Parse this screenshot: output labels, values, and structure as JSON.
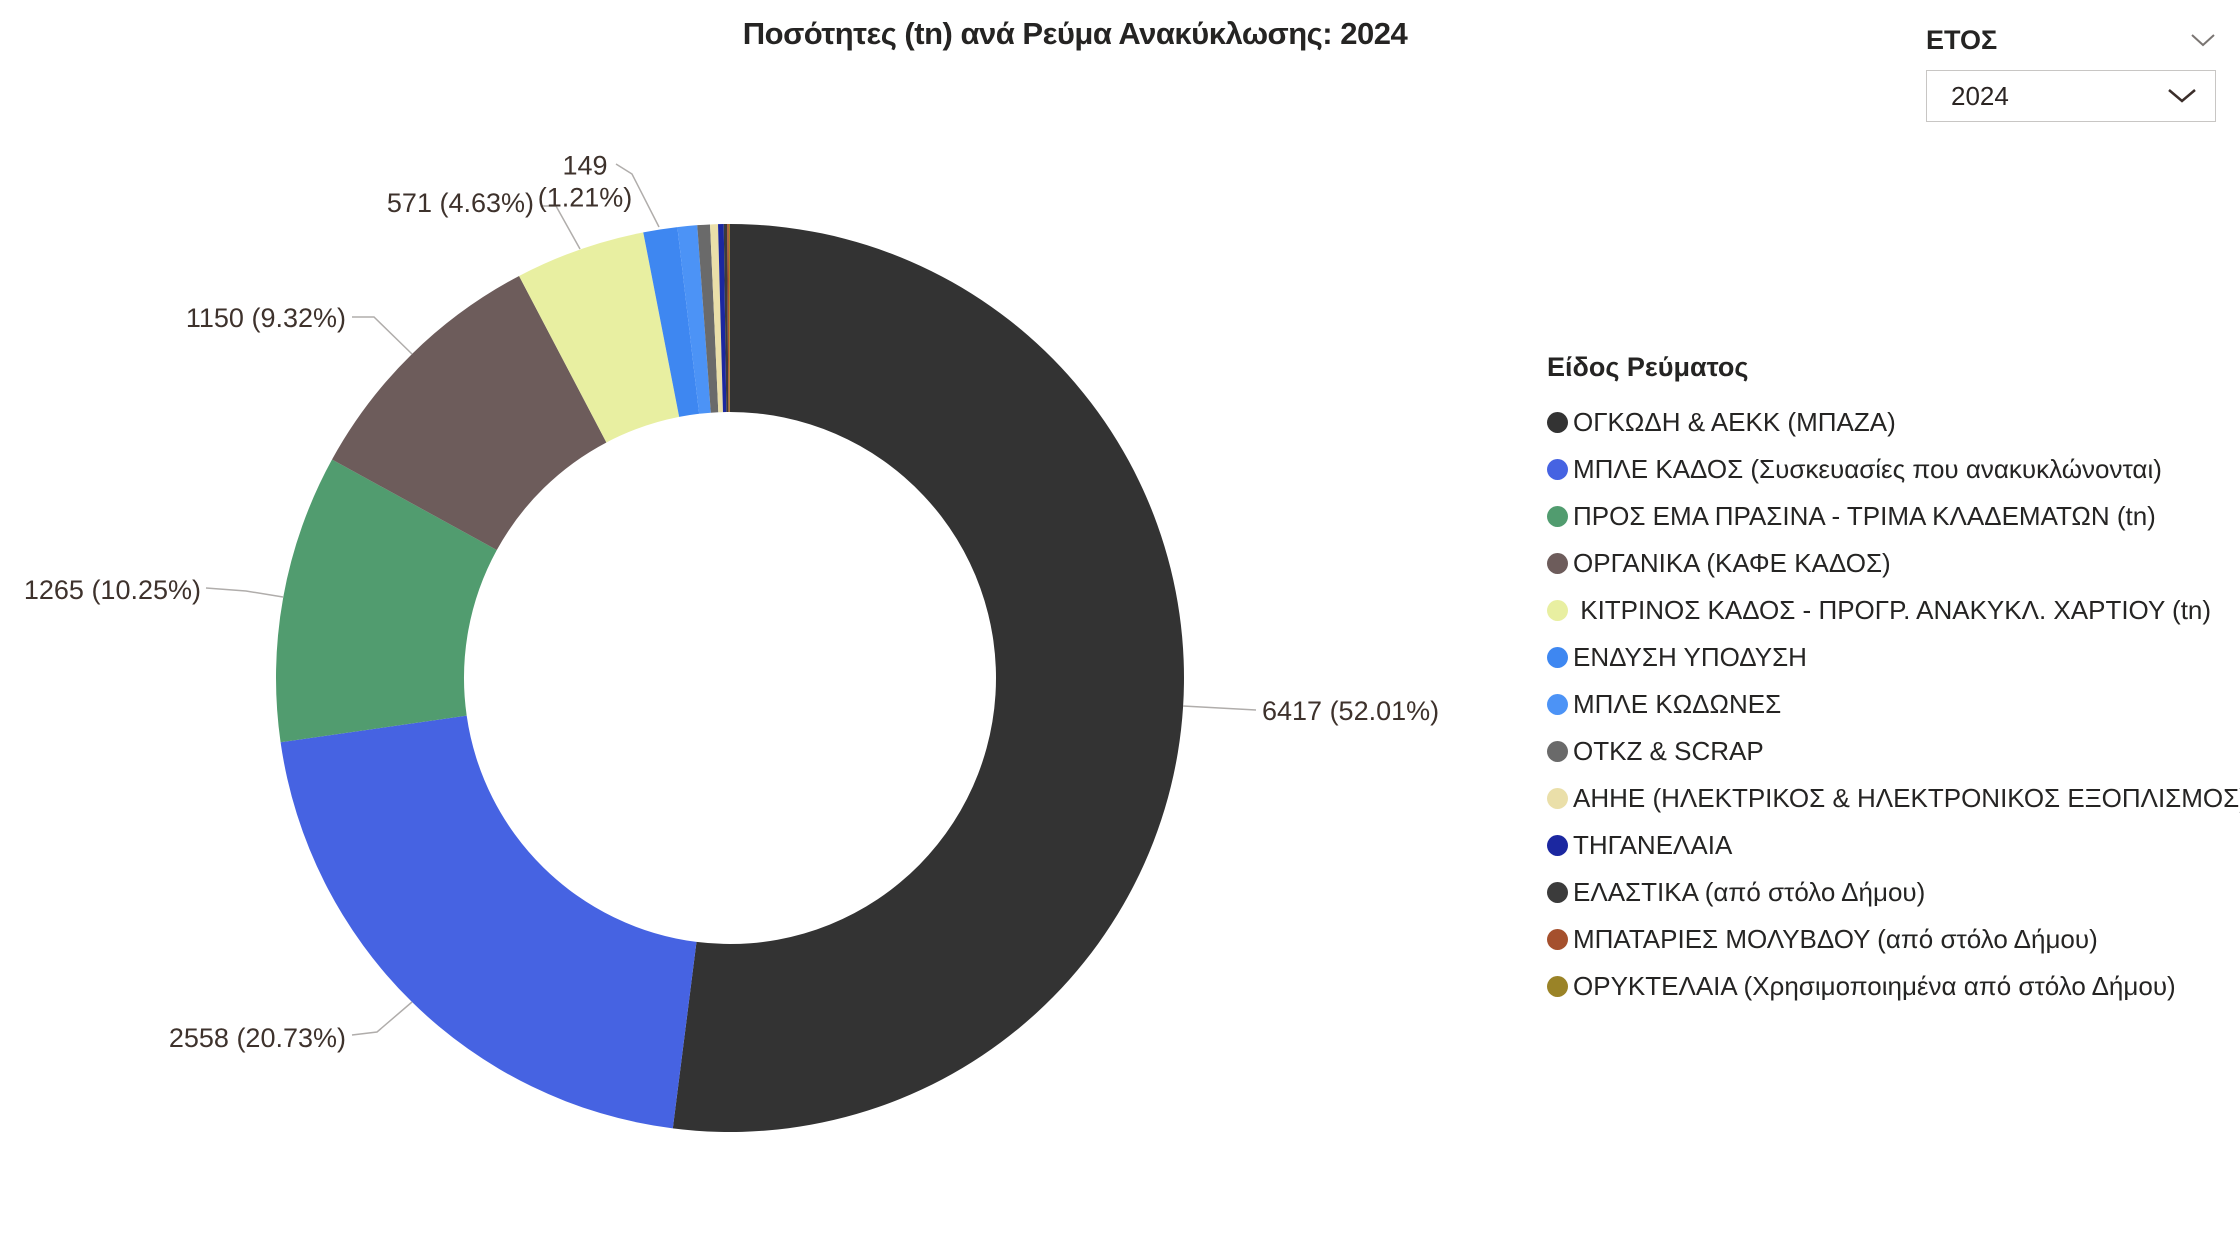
{
  "title": "Ποσότητες (tn) ανά Ρεύμα Ανακύκλωσης: 2024",
  "slicer": {
    "label": "ΕΤΟΣ",
    "value": "2024"
  },
  "legend": {
    "title": "Είδος Ρεύματος"
  },
  "chart_data": {
    "type": "donut",
    "title": "Ποσότητες (tn) ανά Ρεύμα Ανακύκλωσης: 2024",
    "legend_title": "Είδος Ρεύματος",
    "legend_position": "right",
    "slices": [
      {
        "name": "ΟΓΚΩΔΗ & ΑΕΚΚ (ΜΠΑΖΑ)",
        "value": 6417,
        "percent": 52.01,
        "color": "#333333",
        "data_label": "6417 (52.01%)"
      },
      {
        "name": "ΜΠΛΕ ΚΑΔΟΣ (Συσκευασίες που ανακυκλώνονται)",
        "value": 2558,
        "percent": 20.73,
        "color": "#4663E2",
        "data_label": "2558 (20.73%)"
      },
      {
        "name": "ΠΡΟΣ ΕΜΑ ΠΡΑΣΙΝΑ - ΤΡΙΜΑ ΚΛΑΔΕΜΑΤΩΝ (tn)",
        "value": 1265,
        "percent": 10.25,
        "color": "#519C6F",
        "data_label": "1265 (10.25%)"
      },
      {
        "name": "ΟΡΓΑΝΙΚΑ (ΚΑΦΕ ΚΑΔΟΣ)",
        "value": 1150,
        "percent": 9.32,
        "color": "#6D5C5B",
        "data_label": "1150 (9.32%)"
      },
      {
        "name": " ΚΙΤΡΙΝΟΣ ΚΑΔΟΣ - ΠΡΟΓΡ. ΑΝΑΚΥΚΛ. ΧΑΡΤΙΟΥ (tn)",
        "value": 571,
        "percent": 4.63,
        "color": "#E8EFA1",
        "data_label": "571 (4.63%)"
      },
      {
        "name": "ΕΝΔΥΣΗ ΥΠΟΔΥΣΗ",
        "value": 149,
        "percent": 1.21,
        "color": "#3E87F1",
        "data_label": "149 (1.21%)"
      },
      {
        "name": "ΜΠΛΕ ΚΩΔΩΝΕΣ",
        "value": null,
        "percent": 0.7,
        "percent_estimated": true,
        "color": "#4C93F6",
        "data_label": null
      },
      {
        "name": "ΟΤΚΖ & SCRAP",
        "value": null,
        "percent": 0.45,
        "percent_estimated": true,
        "color": "#6A6A6A",
        "data_label": null
      },
      {
        "name": "ΑΗΗΕ (ΗΛΕΚΤΡΙΚΟΣ & ΗΛΕΚΤΡΟΝΙΚΟΣ ΕΞΟΠΛΙΣΜΟΣ)",
        "value": null,
        "percent": 0.28,
        "percent_estimated": true,
        "color": "#EADFA9",
        "data_label": null
      },
      {
        "name": "ΤΗΓΑΝΕΛΑΙΑ",
        "value": null,
        "percent": 0.2,
        "percent_estimated": true,
        "color": "#1B27A0",
        "data_label": null
      },
      {
        "name": "ΕΛΑΣΤΙΚΑ (από στόλο Δήμου)",
        "value": null,
        "percent": 0.12,
        "percent_estimated": true,
        "color": "#3B3B3B",
        "data_label": null
      },
      {
        "name": "ΜΠΑΤΑΡΙΕΣ ΜΟΛΥΒΔΟΥ (από στόλο Δήμου)",
        "value": null,
        "percent": 0.06,
        "percent_estimated": true,
        "color": "#A5502D",
        "data_label": null
      },
      {
        "name": "ΟΡΥΚΤΕΛΑΙΑ (Χρησιμοποιημένα από στόλο Δήμου)",
        "value": null,
        "percent": 0.04,
        "percent_estimated": true,
        "color": "#9A8327",
        "data_label": null
      }
    ]
  }
}
